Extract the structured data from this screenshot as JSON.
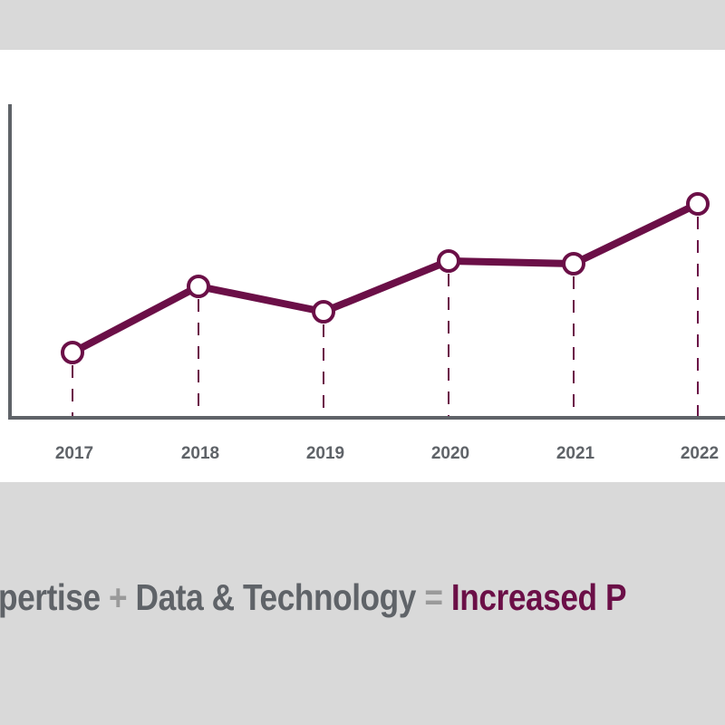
{
  "chart_data": {
    "type": "line",
    "categories": [
      "2017",
      "2018",
      "2019",
      "2020",
      "2021",
      "2022"
    ],
    "values": [
      72,
      145,
      117,
      173,
      170,
      236
    ],
    "title": "",
    "xlabel": "",
    "ylabel": "",
    "ylim": [
      0,
      346
    ],
    "grid": false,
    "markers": "hollow-circle",
    "drop_lines": "dashed",
    "colors": {
      "line": "#6b0f47",
      "axis": "#5f6368",
      "tick_label": "#5f6368"
    }
  },
  "tagline": {
    "part1": "pertise",
    "plus": "+",
    "part2": "Data & Technology",
    "equals": "=",
    "result": "Increased P"
  }
}
